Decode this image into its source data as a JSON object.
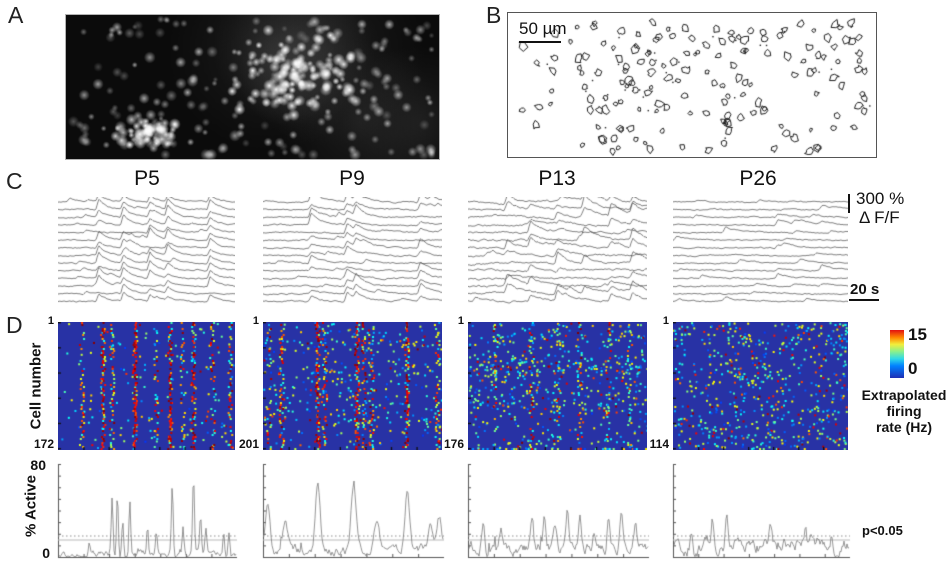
{
  "panels": {
    "a": {
      "label": "A"
    },
    "b": {
      "label": "B",
      "scale_bar": "50 µm"
    },
    "c": {
      "label": "C",
      "amp_scale": "300 %",
      "amp_unit": "Δ F/F",
      "time_scale": "20 s"
    },
    "d": {
      "label": "D",
      "y_axis": "Cell number",
      "first_cell": "1",
      "colorbar": {
        "max": "15",
        "min": "0",
        "line1": "Extrapolated",
        "line2": "firing",
        "line3": "rate (Hz)"
      },
      "active": {
        "ylabel": "% Active",
        "ymax": "80",
        "ymin": "0",
        "sig": "p<0.05",
        "threshold_pct": 15
      }
    }
  },
  "ages": [
    {
      "label": "P5",
      "cell_count": "172",
      "trace_events": [
        0.23,
        0.37,
        0.52,
        0.62,
        0.86
      ],
      "trace_participation": 0.9,
      "trace_amp": 9,
      "trace_noise": 0.9,
      "heat_events": [
        {
          "t": 0.13,
          "s": 0.6
        },
        {
          "t": 0.25,
          "s": 1
        },
        {
          "t": 0.3,
          "s": 0.7
        },
        {
          "t": 0.43,
          "s": 1
        },
        {
          "t": 0.55,
          "s": 0.5
        },
        {
          "t": 0.63,
          "s": 0.85
        },
        {
          "t": 0.7,
          "s": 0.5
        },
        {
          "t": 0.76,
          "s": 0.9
        },
        {
          "t": 0.87,
          "s": 0.6
        },
        {
          "t": 0.97,
          "s": 0.55
        }
      ],
      "heat_scatter": 0.012,
      "banded": false,
      "active_base": 2,
      "active_noise": 2.2,
      "active_peak_w": 0.005,
      "active_peaks": [
        [
          0.17,
          12
        ],
        [
          0.3,
          52
        ],
        [
          0.33,
          55
        ],
        [
          0.36,
          30
        ],
        [
          0.4,
          48
        ],
        [
          0.5,
          28
        ],
        [
          0.55,
          20
        ],
        [
          0.64,
          62
        ],
        [
          0.7,
          25
        ],
        [
          0.76,
          70
        ],
        [
          0.8,
          32
        ],
        [
          0.83,
          24
        ],
        [
          0.93,
          20
        ],
        [
          0.96,
          22
        ]
      ]
    },
    {
      "label": "P9",
      "cell_count": "201",
      "trace_events": [
        0.27,
        0.47,
        0.52,
        0.88
      ],
      "trace_participation": 0.75,
      "trace_amp": 8,
      "trace_noise": 1.0,
      "heat_events": [
        {
          "t": 0.03,
          "s": 0.6
        },
        {
          "t": 0.1,
          "s": 0.8
        },
        {
          "t": 0.3,
          "s": 1
        },
        {
          "t": 0.34,
          "s": 0.7
        },
        {
          "t": 0.52,
          "s": 1
        },
        {
          "t": 0.56,
          "s": 0.8
        },
        {
          "t": 0.6,
          "s": 0.6
        },
        {
          "t": 0.8,
          "s": 0.9
        },
        {
          "t": 0.97,
          "s": 0.7
        }
      ],
      "heat_scatter": 0.03,
      "banded": true,
      "active_base": 6,
      "active_noise": 3,
      "active_peak_w": 0.013,
      "active_peaks": [
        [
          0.02,
          45
        ],
        [
          0.12,
          20
        ],
        [
          0.3,
          62
        ],
        [
          0.5,
          58
        ],
        [
          0.63,
          30
        ],
        [
          0.8,
          55
        ],
        [
          0.93,
          25
        ],
        [
          0.98,
          28
        ]
      ]
    },
    {
      "label": "P13",
      "cell_count": "176",
      "trace_events": [
        0.22,
        0.35,
        0.5,
        0.65,
        0.8,
        0.92
      ],
      "trace_participation": 0.55,
      "trace_amp": 10,
      "trace_noise": 1.4,
      "heat_events": [
        {
          "t": 0.15,
          "s": 0.5
        },
        {
          "t": 0.35,
          "s": 0.6
        },
        {
          "t": 0.5,
          "s": 0.5
        },
        {
          "t": 0.62,
          "s": 0.6
        },
        {
          "t": 0.78,
          "s": 0.5
        },
        {
          "t": 0.9,
          "s": 0.45
        }
      ],
      "heat_scatter": 0.05,
      "banded": true,
      "active_base": 8,
      "active_noise": 4,
      "active_peak_w": 0.008,
      "active_peaks": [
        [
          0.08,
          25
        ],
        [
          0.18,
          18
        ],
        [
          0.35,
          22
        ],
        [
          0.42,
          30
        ],
        [
          0.48,
          25
        ],
        [
          0.55,
          32
        ],
        [
          0.62,
          28
        ],
        [
          0.7,
          20
        ],
        [
          0.78,
          28
        ],
        [
          0.85,
          35
        ],
        [
          0.93,
          25
        ]
      ]
    },
    {
      "label": "P26",
      "cell_count": "114",
      "trace_events": [
        0.3,
        0.6,
        0.85
      ],
      "trace_participation": 0.18,
      "trace_amp": 5,
      "trace_noise": 0.9,
      "heat_events": [],
      "heat_scatter": 0.055,
      "banded": false,
      "active_base": 11,
      "active_noise": 5,
      "active_peak_w": 0.007,
      "active_peaks": [
        [
          0.1,
          18
        ],
        [
          0.22,
          25
        ],
        [
          0.3,
          20
        ],
        [
          0.55,
          15
        ],
        [
          0.75,
          14
        ],
        [
          0.9,
          20
        ]
      ]
    }
  ],
  "colorbar_range": [
    0,
    15
  ],
  "active_range": [
    0,
    80
  ],
  "colors": {
    "heatmap_bg": "#2832a5",
    "trace": "#3a3a3a",
    "active_line": "#7a7a7a",
    "threshold": "#b8b8b8",
    "threshold_dotted": "#8f8f8f"
  }
}
